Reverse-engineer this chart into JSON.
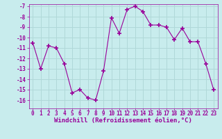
{
  "x": [
    0,
    1,
    2,
    3,
    4,
    5,
    6,
    7,
    8,
    9,
    10,
    11,
    12,
    13,
    14,
    15,
    16,
    17,
    18,
    19,
    20,
    21,
    22,
    23
  ],
  "y": [
    -10.5,
    -13.0,
    -10.8,
    -11.0,
    -12.5,
    -15.3,
    -15.0,
    -15.8,
    -16.0,
    -13.2,
    -8.1,
    -9.6,
    -7.3,
    -7.0,
    -7.5,
    -8.8,
    -8.8,
    -9.0,
    -10.2,
    -9.1,
    -10.4,
    -10.4,
    -12.5,
    -15.0
  ],
  "line_color": "#990099",
  "marker": "+",
  "marker_size": 4,
  "bg_color": "#c8eced",
  "grid_color": "#b0d8d8",
  "xlabel": "Windchill (Refroidissement éolien,°C)",
  "xlabel_color": "#990099",
  "xlabel_fontsize": 6.5,
  "tick_color": "#990099",
  "tick_fontsize": 5.5,
  "ylim": [
    -16.8,
    -6.8
  ],
  "xlim": [
    -0.5,
    23.5
  ],
  "yticks": [
    -7,
    -8,
    -9,
    -10,
    -11,
    -12,
    -13,
    -14,
    -15,
    -16
  ],
  "xticks": [
    0,
    1,
    2,
    3,
    4,
    5,
    6,
    7,
    8,
    9,
    10,
    11,
    12,
    13,
    14,
    15,
    16,
    17,
    18,
    19,
    20,
    21,
    22,
    23
  ]
}
